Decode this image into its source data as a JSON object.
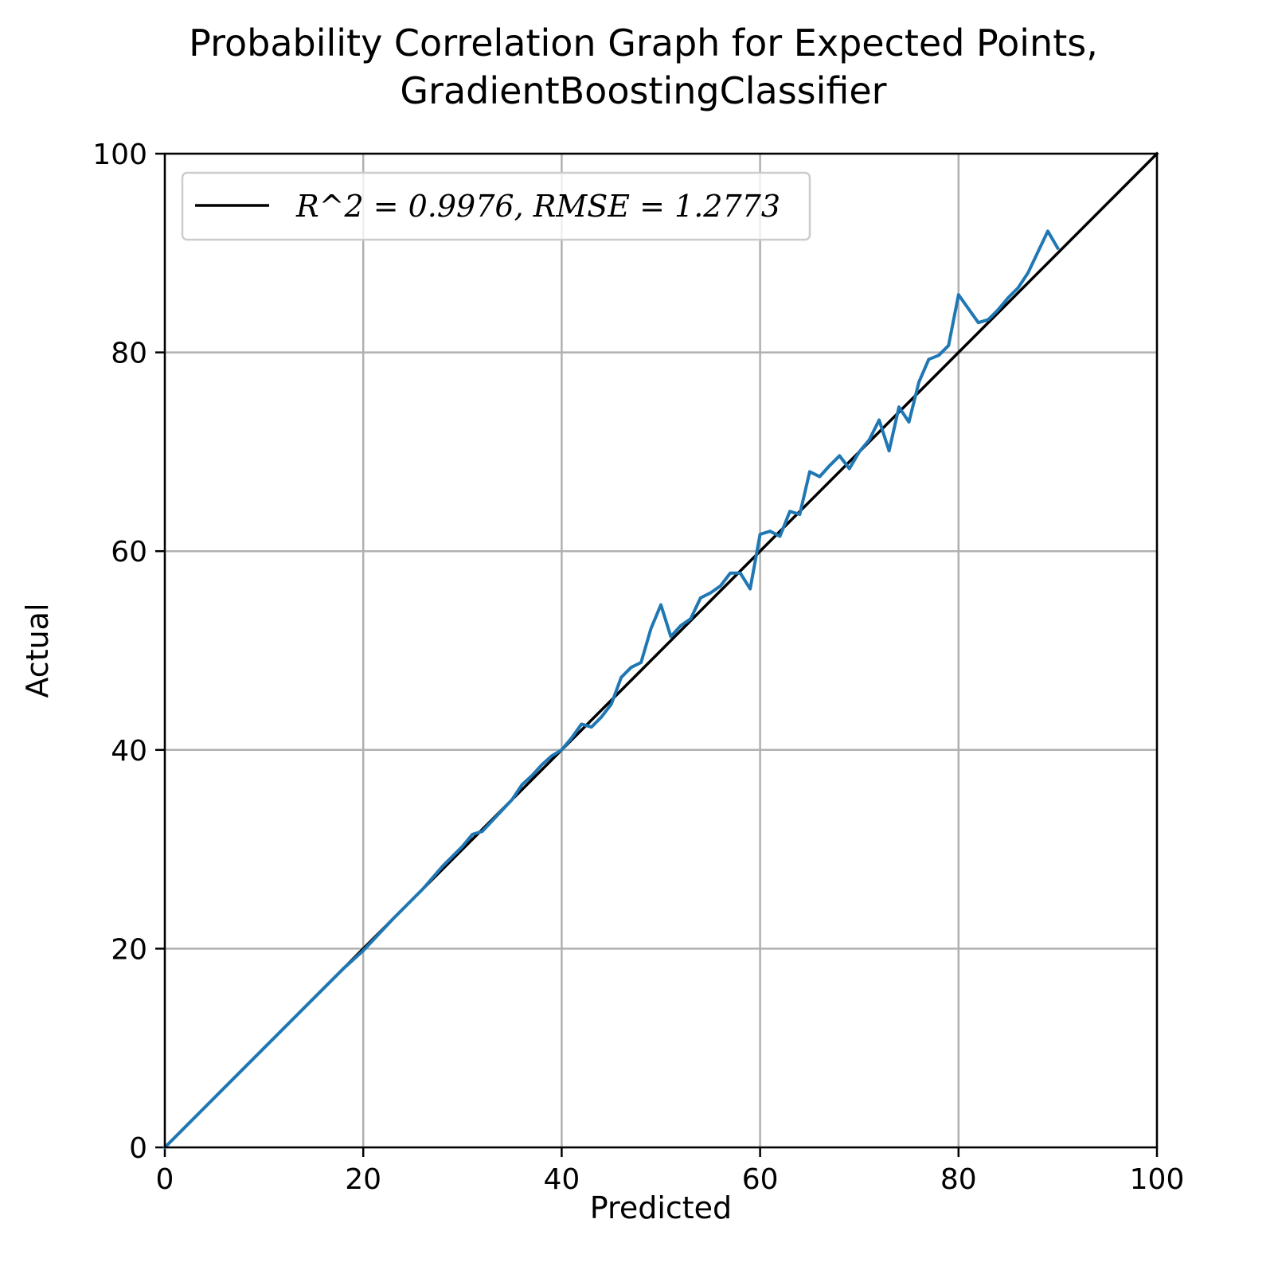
{
  "chart_data": {
    "type": "line",
    "title_lines": [
      "Probability Correlation Graph for Expected Points,",
      "GradientBoostingClassifier"
    ],
    "xlabel": "Predicted",
    "ylabel": "Actual",
    "xlim": [
      0,
      100
    ],
    "ylim": [
      0,
      100
    ],
    "xticks": [
      0,
      20,
      40,
      60,
      80,
      100
    ],
    "yticks": [
      0,
      20,
      40,
      60,
      80,
      100
    ],
    "grid": true,
    "legend_position": "upper-left",
    "legend": {
      "label": "R^2 = 0.9976, RMSE = 1.2773"
    },
    "series": [
      {
        "name": "R^2 = 0.9976, RMSE = 1.2773",
        "color": "#000000",
        "x": [
          0,
          100
        ],
        "y": [
          0,
          100
        ]
      },
      {
        "color": "#1f77b4",
        "x": [
          0,
          5,
          10,
          11,
          15,
          18,
          20,
          23,
          26,
          28,
          30,
          31,
          32,
          35,
          36,
          37,
          38,
          39,
          40,
          41,
          42,
          43,
          44,
          45,
          46,
          47,
          48,
          49,
          50,
          51,
          52,
          53,
          54,
          55,
          56,
          57,
          58,
          59,
          60,
          61,
          62,
          63,
          64,
          65,
          66,
          67,
          68,
          69,
          70,
          71,
          72,
          73,
          74,
          75,
          76,
          77,
          78,
          79,
          80,
          82,
          83,
          84,
          85,
          86,
          87,
          89,
          90
        ],
        "y": [
          0,
          5,
          10,
          11,
          15,
          18,
          19.8,
          23,
          26,
          28.3,
          30.3,
          31.5,
          31.8,
          35,
          36.5,
          37.4,
          38.5,
          39.4,
          40,
          41.2,
          42.6,
          42.3,
          43.3,
          44.6,
          47.3,
          48.3,
          48.8,
          52.2,
          54.6,
          51.4,
          52.5,
          53.2,
          55.3,
          55.8,
          56.5,
          57.8,
          57.8,
          56.2,
          61.7,
          62,
          61.5,
          64,
          63.7,
          68,
          67.5,
          68.6,
          69.6,
          68.3,
          70,
          71.2,
          73.2,
          70.1,
          74.5,
          73,
          77,
          79.3,
          79.7,
          80.7,
          85.8,
          83,
          83.3,
          84.3,
          85.5,
          86.5,
          88,
          92.2,
          90.5
        ]
      }
    ]
  }
}
